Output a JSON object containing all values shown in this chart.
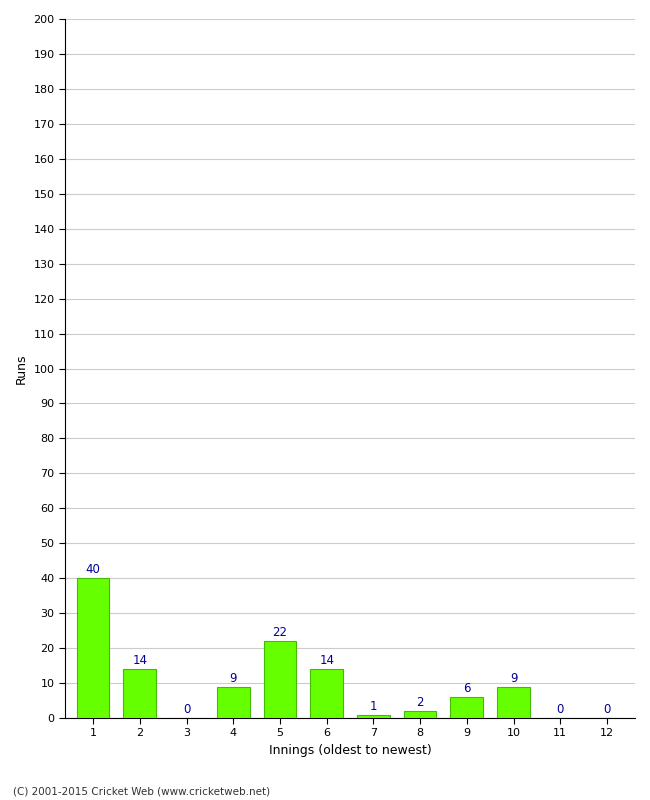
{
  "categories": [
    "1",
    "2",
    "3",
    "4",
    "5",
    "6",
    "7",
    "8",
    "9",
    "10",
    "11",
    "12"
  ],
  "values": [
    40,
    14,
    0,
    9,
    22,
    14,
    1,
    2,
    6,
    9,
    0,
    0
  ],
  "bar_color": "#66ff00",
  "bar_edge_color": "#44bb00",
  "label_color": "#000099",
  "ylabel": "Runs",
  "xlabel": "Innings (oldest to newest)",
  "ylim": [
    0,
    200
  ],
  "yticks": [
    0,
    10,
    20,
    30,
    40,
    50,
    60,
    70,
    80,
    90,
    100,
    110,
    120,
    130,
    140,
    150,
    160,
    170,
    180,
    190,
    200
  ],
  "footer": "(C) 2001-2015 Cricket Web (www.cricketweb.net)",
  "background_color": "#ffffff",
  "grid_color": "#cccccc",
  "spine_color": "#000000"
}
